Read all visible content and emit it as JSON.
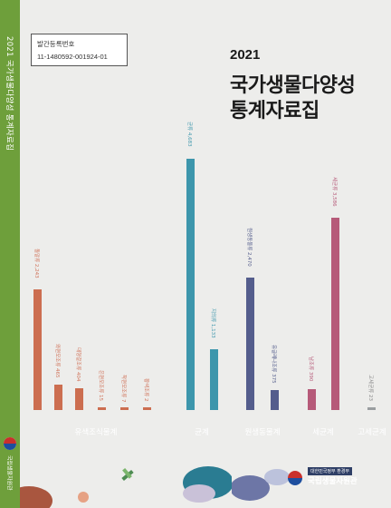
{
  "spine": {
    "title": "2021 국가생물다양성 통계자료집",
    "publisher": "국립생물자원관"
  },
  "registration": {
    "label": "발간등록번호",
    "number": "11-1480592-001924-01"
  },
  "cover": {
    "year": "2021",
    "title_line1": "국가생물다양성",
    "title_line2": "통계자료집"
  },
  "groups": [
    {
      "name": "유색조식물계",
      "color": "#cc6e50",
      "bar_color": "#cc6e50",
      "label_color": "#d0735a"
    },
    {
      "name": "균계",
      "color": "#3d96ac",
      "bar_color": "#3d96ac",
      "label_color": "#3d96ac"
    },
    {
      "name": "원생동물계",
      "color": "#545d8c",
      "bar_color": "#545d8c",
      "label_color": "#545d8c"
    },
    {
      "name": "세균계",
      "color": "#b65a79",
      "bar_color": "#b65a79",
      "label_color": "#b65a79"
    },
    {
      "name": "고세균계",
      "color": "#9a9ea0",
      "bar_color": "#9a9ea0",
      "label_color": "#888888"
    }
  ],
  "chart_data": {
    "type": "bar",
    "values_max": 5000,
    "bars": [
      {
        "label": "돌말류 2,243",
        "value": 2243,
        "group": 0
      },
      {
        "label": "와편모조류 465",
        "value": 465,
        "group": 0
      },
      {
        "label": "대형갈조류 404",
        "value": 404,
        "group": 0
      },
      {
        "label": "은편모조류 15",
        "value": 15,
        "group": 0
      },
      {
        "label": "착편모조류 7",
        "value": 7,
        "group": 0
      },
      {
        "label": "황색조류 2",
        "value": 2,
        "group": 0
      },
      {
        "label": "균류 4,683",
        "value": 4683,
        "group": 1
      },
      {
        "label": "지의류 1,133",
        "value": 1133,
        "group": 1
      },
      {
        "label": "원생동물류 2,470",
        "value": 2470,
        "group": 2
      },
      {
        "label": "유글레나조류 375",
        "value": 375,
        "group": 2
      },
      {
        "label": "남조류 390",
        "value": 390,
        "group": 3
      },
      {
        "label": "세균류 3,586",
        "value": 3586,
        "group": 3
      },
      {
        "label": "고세균류 23",
        "value": 23,
        "group": 4
      }
    ]
  },
  "publisher": {
    "ministry": "대한민국정부 환경부",
    "org": "국립생물자원관"
  }
}
